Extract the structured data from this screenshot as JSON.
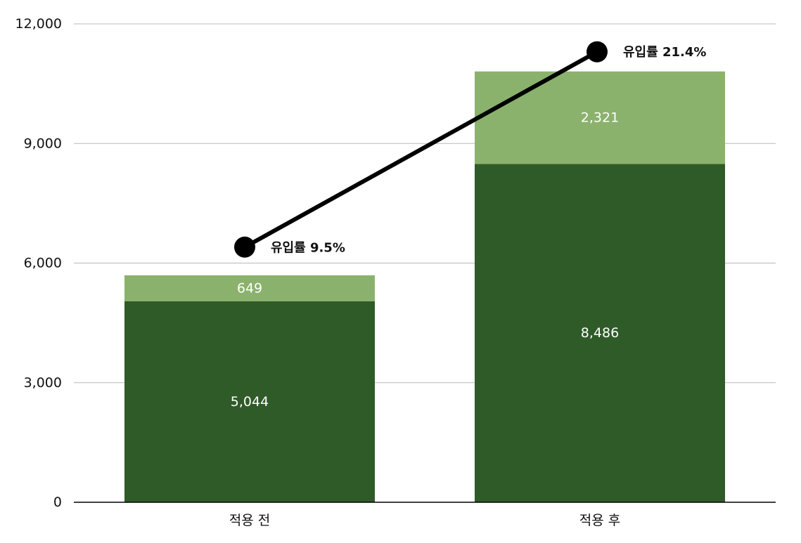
{
  "chart_data": {
    "type": "bar",
    "stacked": true,
    "categories": [
      "적용 전",
      "적용 후"
    ],
    "series": [
      {
        "values": [
          5044,
          8486
        ],
        "color": "#2f5b28"
      },
      {
        "values": [
          649,
          2321
        ],
        "color": "#8ab26c"
      }
    ],
    "line_series": {
      "values": [
        6400,
        11300
      ],
      "labels": [
        "유입률 9.5%",
        "유입률 21.4%"
      ],
      "color": "#000000"
    },
    "value_labels": [
      [
        "5,044",
        "8,486"
      ],
      [
        "649",
        "2,321"
      ]
    ],
    "y_ticks": [
      0,
      3000,
      6000,
      9000,
      12000
    ],
    "y_tick_labels": [
      "0",
      "3,000",
      "6,000",
      "9,000",
      "12,000"
    ],
    "ylim": [
      0,
      12000
    ],
    "grid": true,
    "title": "",
    "xlabel": "",
    "ylabel": ""
  }
}
